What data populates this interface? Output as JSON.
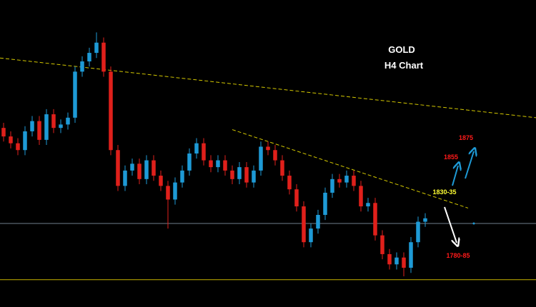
{
  "chart_data": {
    "type": "candlestick",
    "title": "GOLD",
    "subtitle": "H4 Chart",
    "xlim": [
      -0.5,
      74.5
    ],
    "ylim": [
      1760,
      1940
    ],
    "up_color": "#1e9ad6",
    "down_color": "#e0201b",
    "open": [
      1865,
      1860,
      1856,
      1852,
      1863,
      1869,
      1858,
      1873,
      1865,
      1867,
      1871,
      1898,
      1904,
      1909,
      1915,
      1898,
      1852,
      1831,
      1840,
      1844,
      1835,
      1846,
      1837,
      1831,
      1823,
      1833,
      1840,
      1850,
      1856,
      1846,
      1842,
      1846,
      1840,
      1835,
      1842,
      1833,
      1840,
      1854,
      1852,
      1846,
      1837,
      1829,
      1819,
      1798,
      1806,
      1814,
      1827,
      1835,
      1833,
      1837,
      1831,
      1819,
      1821,
      1802,
      1791,
      1785,
      1789,
      1783,
      1798,
      1810
    ],
    "high": [
      1868,
      1863,
      1859,
      1866,
      1872,
      1872,
      1876,
      1876,
      1870,
      1874,
      1901,
      1907,
      1912,
      1921,
      1918,
      1901,
      1855,
      1843,
      1847,
      1847,
      1849,
      1849,
      1840,
      1834,
      1836,
      1843,
      1853,
      1859,
      1859,
      1849,
      1849,
      1849,
      1843,
      1845,
      1845,
      1843,
      1857,
      1857,
      1855,
      1849,
      1840,
      1832,
      1822,
      1809,
      1817,
      1830,
      1838,
      1838,
      1840,
      1840,
      1834,
      1824,
      1824,
      1805,
      1794,
      1792,
      1792,
      1801,
      1813,
      1815
    ],
    "low": [
      1857,
      1853,
      1849,
      1849,
      1860,
      1855,
      1855,
      1862,
      1862,
      1864,
      1868,
      1895,
      1901,
      1906,
      1895,
      1849,
      1828,
      1828,
      1837,
      1832,
      1832,
      1834,
      1828,
      1806,
      1820,
      1830,
      1837,
      1847,
      1843,
      1839,
      1839,
      1837,
      1832,
      1832,
      1830,
      1830,
      1837,
      1849,
      1843,
      1834,
      1826,
      1816,
      1795,
      1795,
      1803,
      1811,
      1824,
      1830,
      1830,
      1828,
      1816,
      1816,
      1799,
      1788,
      1782,
      1782,
      1778,
      1780,
      1795,
      1807
    ],
    "close": [
      1860,
      1856,
      1852,
      1863,
      1869,
      1858,
      1873,
      1865,
      1867,
      1871,
      1898,
      1904,
      1909,
      1915,
      1898,
      1852,
      1831,
      1840,
      1844,
      1835,
      1846,
      1837,
      1831,
      1823,
      1833,
      1840,
      1850,
      1856,
      1846,
      1842,
      1846,
      1840,
      1835,
      1842,
      1833,
      1840,
      1854,
      1852,
      1846,
      1837,
      1829,
      1819,
      1798,
      1806,
      1814,
      1827,
      1835,
      1833,
      1837,
      1831,
      1819,
      1821,
      1802,
      1791,
      1785,
      1789,
      1783,
      1798,
      1810,
      1812
    ],
    "levels": [
      {
        "y": 1809,
        "color": "#6f7f8c"
      },
      {
        "y": 1776,
        "color": "#c8b400"
      }
    ],
    "trendlines": [
      {
        "x": [
          -0.5,
          74.5
        ],
        "y": [
          1906,
          1871
        ],
        "color": "#d4c800"
      },
      {
        "x": [
          32,
          65
        ],
        "y": [
          1864,
          1818
        ],
        "color": "#d4c800"
      }
    ],
    "annotations": [
      "1875",
      "1855",
      "1830-35",
      "1780-85"
    ]
  }
}
